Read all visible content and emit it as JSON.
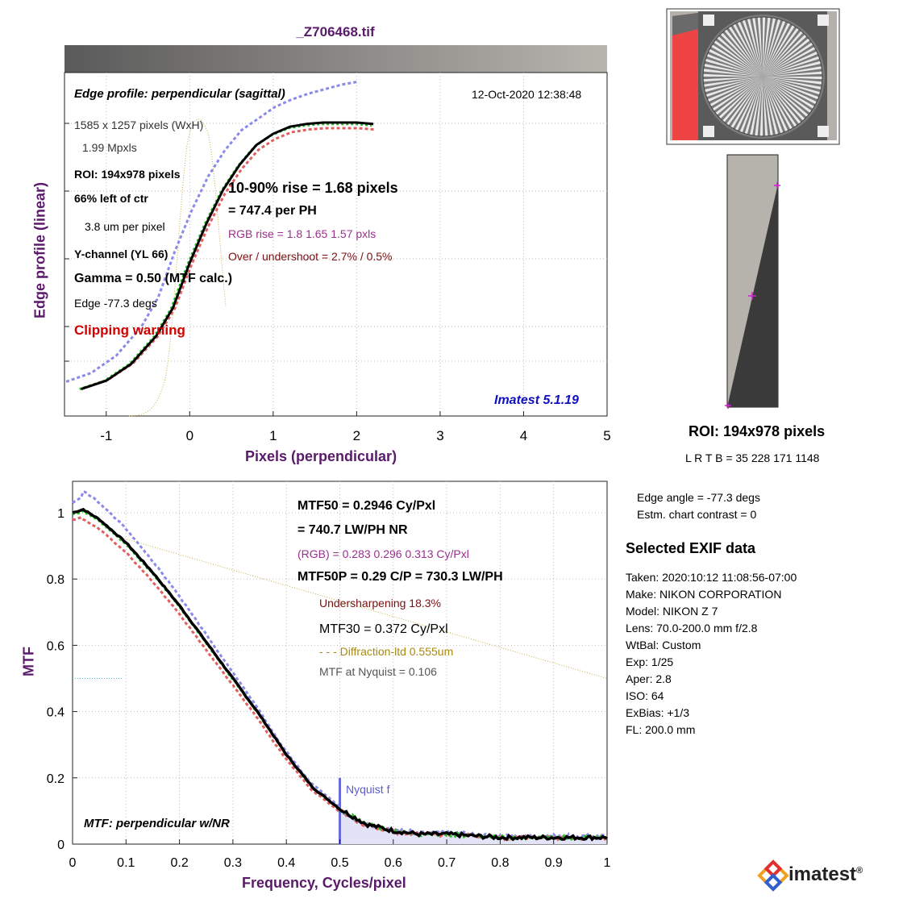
{
  "file_title": "_Z706468.tif",
  "edge_panel": {
    "title": "Edge profile: perpendicular (sagittal)",
    "timestamp": "12-Oct-2020 12:38:48",
    "dims": "1585 x 1257 pixels (WxH)",
    "mpxls": "1.99 Mpxls",
    "roi": "ROI:  194x978 pixels",
    "position": "66% left of ctr",
    "pixel_size": "3.8 um per pixel",
    "channel": "Y-channel  (YL 66)",
    "gamma": "Gamma = 0.50 (MTF calc.)",
    "edge_angle": "Edge  -77.3 degs",
    "clipping": "Clipping warning",
    "rise": "10-90% rise = 1.68 pixels",
    "per_ph": "=  747.4 per PH",
    "rgb_rise": "RGB rise =     1.8     1.65     1.57 pxls",
    "overshoot": "Over / undershoot =  2.7% /  0.5%",
    "version": "Imatest 5.1.19",
    "xlabel": "Pixels (perpendicular)",
    "ylabel": "Edge profile (linear)",
    "xticks": [
      "-1",
      "0",
      "1",
      "2",
      "3",
      "4",
      "5"
    ]
  },
  "mtf_panel": {
    "mtf50": "MTF50 = 0.2946 Cy/Pxl",
    "lwph": "= 740.7 LW/PH  NR",
    "rgb": "(RGB) = 0.283  0.296  0.313 Cy/Pxl",
    "mtf50p": "MTF50P = 0.29 C/P = 730.3 LW/PH",
    "undersharp": "Undersharpening 18.3%",
    "mtf30": "MTF30 = 0.372 Cy/Pxl",
    "diffraction": "- - - Diffraction-ltd  0.555um",
    "nyq_mtf": "MTF at Nyquist = 0.106",
    "nyquist_label": "Nyquist f",
    "panel_title": "MTF: perpendicular w/NR",
    "xlabel": "Frequency, Cycles/pixel",
    "ylabel": "MTF",
    "xticks": [
      "0",
      "0.1",
      "0.2",
      "0.3",
      "0.4",
      "0.5",
      "0.6",
      "0.7",
      "0.8",
      "0.9",
      "1"
    ],
    "yticks": [
      "0",
      "0.2",
      "0.4",
      "0.6",
      "0.8",
      "1"
    ]
  },
  "side": {
    "roi_title": "ROI:  194x978 pixels",
    "lrtb": "L R  T B = 35 228  171 1148",
    "edge_angle": "Edge angle = -77.3 degs",
    "contrast": "Estm. chart contrast = 0",
    "exif_head": "Selected EXIF data",
    "exif": [
      "Taken: 2020:10:12 11:08:56-07:00",
      "Make:  NIKON CORPORATION",
      "Model:  NIKON Z 7",
      "Lens:   70.0-200.0 mm f/2.8",
      "WtBal: Custom",
      "Exp:    1/25",
      "Aper:   2.8",
      "ISO:    64",
      "ExBias: +1/3",
      "FL:     200.0 mm"
    ],
    "logo": "imatest"
  },
  "colors": {
    "title": "#5a1a6a",
    "luminance": "#000000",
    "red": "#e06060",
    "green": "#20a020",
    "blue": "#8a8ae8",
    "diffraction": "#c8b040",
    "nyquist": "#6a6ad8"
  },
  "chart_data": [
    {
      "type": "line",
      "title": "Edge profile: perpendicular (sagittal)",
      "xlabel": "Pixels (perpendicular)",
      "ylabel": "Edge profile (linear)",
      "xlim": [
        -1.5,
        5
      ],
      "ylim": [
        0,
        1
      ],
      "series": [
        {
          "x": [
            -1.3,
            -1.0,
            -0.7,
            -0.4,
            -0.2,
            0.0,
            0.2,
            0.4,
            0.6,
            0.8,
            1.0,
            1.2,
            1.4,
            1.6,
            1.8,
            2.0,
            2.2
          ],
          "values": [
            0.05,
            0.08,
            0.14,
            0.24,
            0.34,
            0.5,
            0.64,
            0.76,
            0.85,
            0.92,
            0.96,
            0.985,
            0.995,
            1.0,
            1.0,
            1.0,
            0.995
          ]
        }
      ]
    },
    {
      "type": "line",
      "xlabel": "Frequency, Cycles/pixel",
      "ylabel": "MTF",
      "xlim": [
        0,
        1
      ],
      "ylim": [
        0,
        1.05
      ],
      "series": [
        {
          "x": [
            0,
            0.02,
            0.05,
            0.1,
            0.15,
            0.2,
            0.25,
            0.3,
            0.35,
            0.4,
            0.45,
            0.5,
            0.55,
            0.6,
            0.65,
            0.7,
            0.8,
            0.9,
            1.0
          ],
          "values": [
            1.0,
            1.01,
            0.98,
            0.91,
            0.82,
            0.72,
            0.61,
            0.5,
            0.39,
            0.27,
            0.17,
            0.106,
            0.06,
            0.04,
            0.03,
            0.03,
            0.02,
            0.02,
            0.02
          ]
        }
      ]
    }
  ]
}
